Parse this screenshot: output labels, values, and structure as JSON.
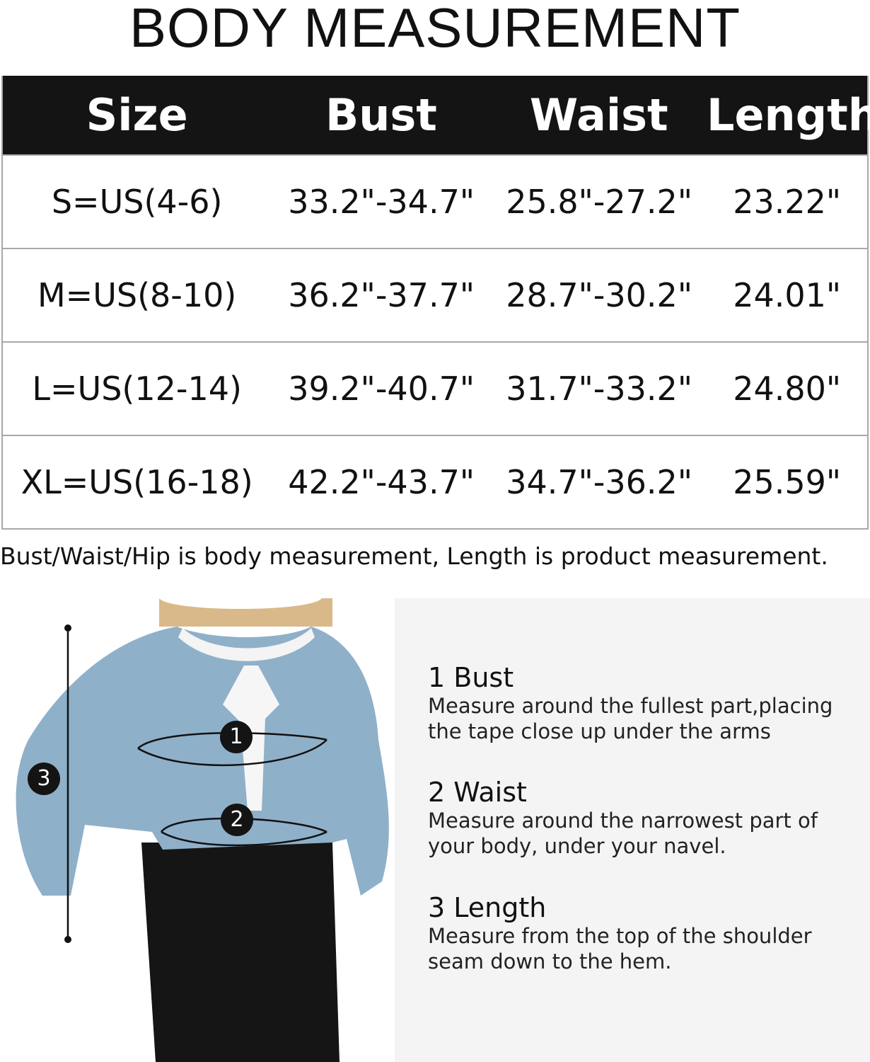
{
  "title": "BODY MEASUREMENT",
  "table": {
    "headers": [
      "Size",
      "Bust",
      "Waist",
      "Length"
    ],
    "rows": [
      [
        "S=US(4-6)",
        "33.2\"-34.7\"",
        "25.8\"-27.2\"",
        "23.22\""
      ],
      [
        "M=US(8-10)",
        "36.2\"-37.7\"",
        "28.7\"-30.2\"",
        "24.01\""
      ],
      [
        "L=US(12-14)",
        "39.2\"-40.7\"",
        "31.7\"-33.2\"",
        "24.80\""
      ],
      [
        "XL=US(16-18)",
        "42.2\"-43.7\"",
        "34.7\"-36.2\"",
        "25.59\""
      ]
    ]
  },
  "note": "Bust/Waist/Hip is body measurement, Length is product measurement.",
  "figure": {
    "markers": [
      "1",
      "2",
      "3"
    ],
    "sweater_color": "#8fb0c9"
  },
  "guide": [
    {
      "title": "1  Bust",
      "text": "Measure around the fullest part,placing the tape close up under the arms"
    },
    {
      "title": "2 Waist",
      "text": "Measure around the narrowest part of your body, under your navel."
    },
    {
      "title": "3 Length",
      "text": "Measure from the top of the shoulder seam down to the hem."
    }
  ]
}
